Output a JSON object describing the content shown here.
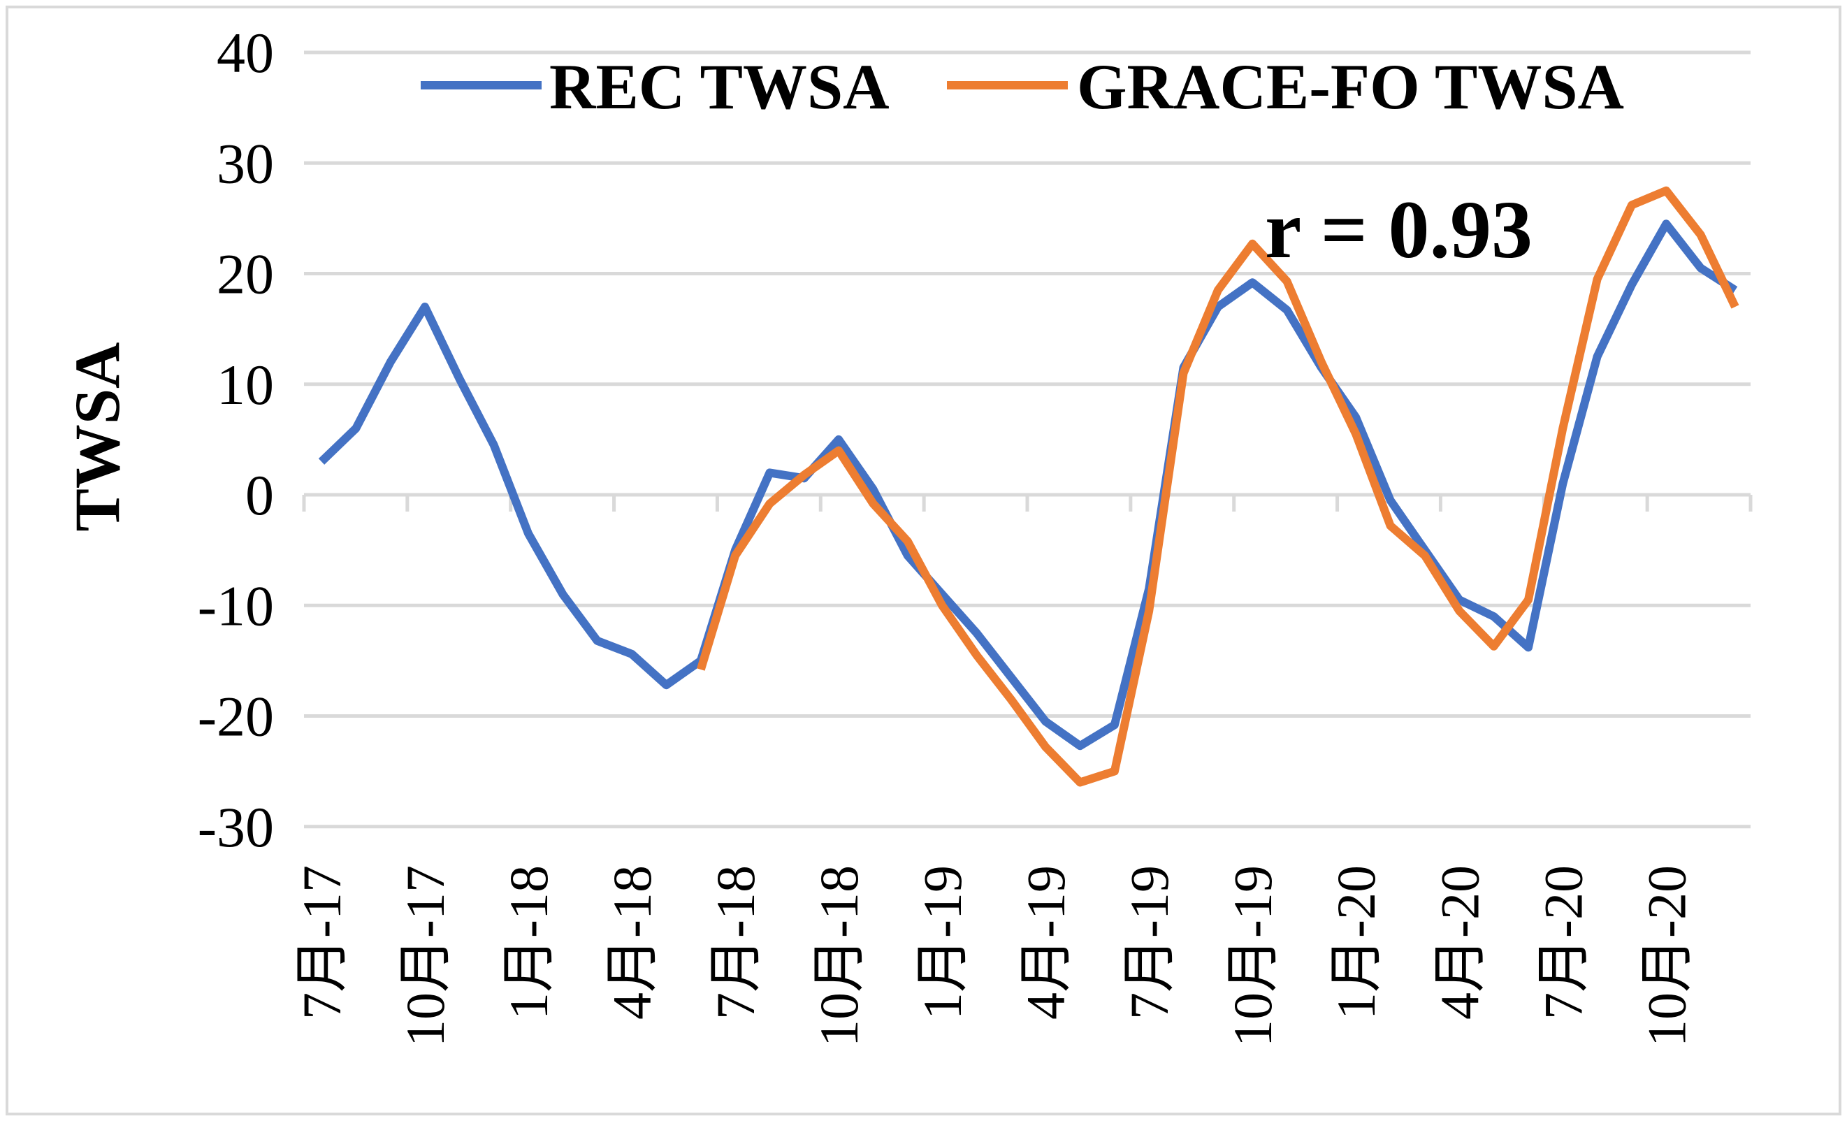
{
  "chart_data": {
    "type": "line",
    "title": "",
    "xlabel": "",
    "ylabel": "TWSA",
    "ylim": [
      -30,
      40
    ],
    "yticks": [
      -30,
      -20,
      -10,
      0,
      10,
      20,
      30,
      40
    ],
    "grid": true,
    "legend_position": "top",
    "annotation": "r = 0.93",
    "x": [
      "7月-17",
      "8月-17",
      "9月-17",
      "10月-17",
      "11月-17",
      "12月-17",
      "1月-18",
      "2月-18",
      "3月-18",
      "4月-18",
      "5月-18",
      "6月-18",
      "7月-18",
      "8月-18",
      "9月-18",
      "10月-18",
      "11月-18",
      "12月-18",
      "1月-19",
      "2月-19",
      "3月-19",
      "4月-19",
      "5月-19",
      "6月-19",
      "7月-19",
      "8月-19",
      "9月-19",
      "10月-19",
      "11月-19",
      "12月-19",
      "1月-20",
      "2月-20",
      "3月-20",
      "4月-20",
      "5月-20",
      "6月-20",
      "7月-20",
      "8月-20",
      "9月-20",
      "10月-20",
      "11月-20",
      "12月-20"
    ],
    "x_tick_labels": [
      "7月-17",
      "10月-17",
      "1月-18",
      "4月-18",
      "7月-18",
      "10月-18",
      "1月-19",
      "4月-19",
      "7月-19",
      "10月-19",
      "1月-20",
      "4月-20",
      "7月-20",
      "10月-20"
    ],
    "series": [
      {
        "name": "REC TWSA",
        "color": "#4472c4",
        "values": [
          3,
          6,
          12,
          17,
          10.5,
          4.5,
          -3.5,
          -9,
          -13.2,
          -14.4,
          -17.2,
          -15,
          -5,
          2,
          1.5,
          5,
          0.5,
          -5.5,
          -9,
          -12.5,
          -16.5,
          -20.5,
          -22.7,
          -20.8,
          -8.5,
          11.5,
          17,
          19.2,
          16.7,
          11.5,
          7,
          -0.5,
          -5,
          -9.5,
          -11,
          -13.8,
          1,
          12.5,
          19,
          24.5,
          20.5,
          18.5
        ]
      },
      {
        "name": "GRACE-FO TWSA",
        "color": "#ed7d31",
        "values": [
          null,
          null,
          null,
          null,
          null,
          null,
          null,
          null,
          null,
          null,
          null,
          -15.8,
          -5.5,
          -0.8,
          1.8,
          4,
          -0.8,
          -4.2,
          -10,
          -14.5,
          -18.5,
          -22.8,
          -26,
          -25,
          -10.5,
          11,
          18.5,
          22.7,
          19.3,
          12,
          5.5,
          -2.8,
          -5.5,
          -10.5,
          -13.7,
          -9.5,
          6,
          19.5,
          26.2,
          27.5,
          23.5,
          17
        ]
      }
    ]
  }
}
